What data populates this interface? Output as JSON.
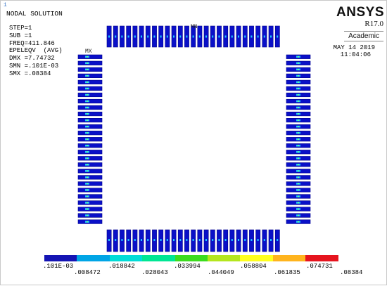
{
  "window_number": "1",
  "info": {
    "title": "NODAL SOLUTION",
    "lines": [
      "STEP=1",
      "SUB =1",
      "FREQ=411.846",
      "EPELEQV  (AVG)",
      "DMX =7.74732",
      "SMN =.101E-03",
      "SMX =.08384"
    ]
  },
  "brand": {
    "name": "ANSYS",
    "version": "R17.0",
    "edition": "Academic"
  },
  "timestamp": {
    "date": "MAY 14 2019",
    "time": "11:04:06"
  },
  "markers": {
    "max": "MX",
    "min": "MN"
  },
  "colors": {
    "pin_fill": "#0a10c8",
    "pin_outline": "#00008a",
    "pin_hot": "#1ec8ff",
    "pin_hot2": "#7dff7d",
    "legend": [
      "#1414b4",
      "#00a5e6",
      "#00dcd7",
      "#00e694",
      "#3cdc1e",
      "#b4e61e",
      "#ffff1e",
      "#ffb41e",
      "#e6141e"
    ]
  },
  "legend": {
    "labels_top": [
      ".101E-03",
      ".018842",
      ".033994",
      ".058804",
      ".074731"
    ],
    "labels_bottom": [
      ".008472",
      ".028043",
      ".044049",
      ".061835",
      ".08384"
    ]
  }
}
